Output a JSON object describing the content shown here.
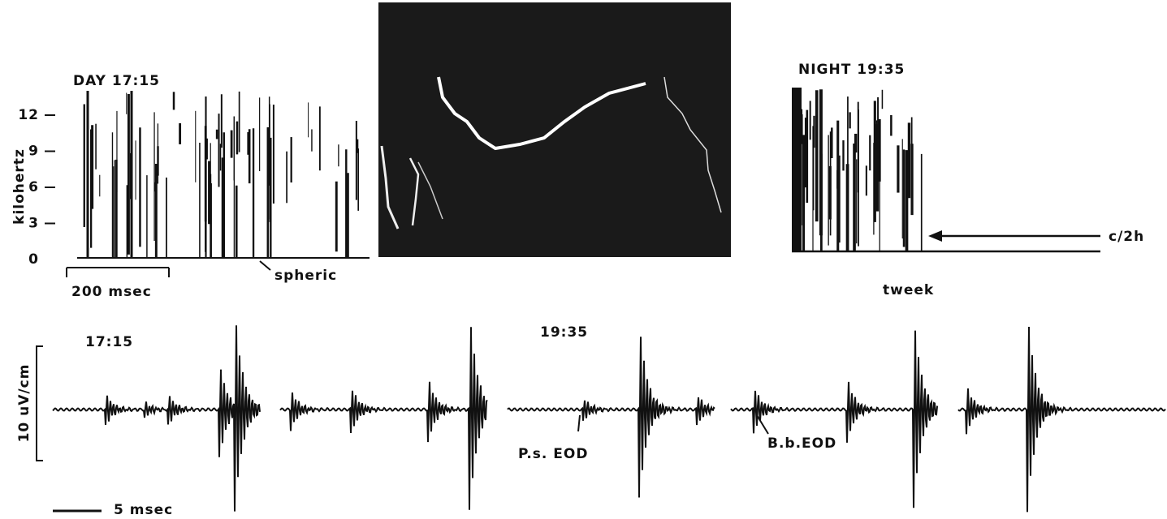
{
  "spectrogram_day": {
    "title": "DAY 17:15",
    "axis_label": "kilohertz",
    "ticks": [
      12,
      9,
      6,
      3,
      0
    ],
    "scale_bar": "200 msec",
    "annotation": "spheric"
  },
  "spectrogram_night": {
    "title": "NIGHT 19:35",
    "annotations": [
      "tweek",
      "c/2h"
    ]
  },
  "waveforms": {
    "day_label": "17:15",
    "night_label": "19:35",
    "amplitude_scale": "10 uV/cm",
    "time_scale": "5 msec",
    "annotations": [
      "P.s. EOD",
      "B.b.EOD"
    ]
  }
}
